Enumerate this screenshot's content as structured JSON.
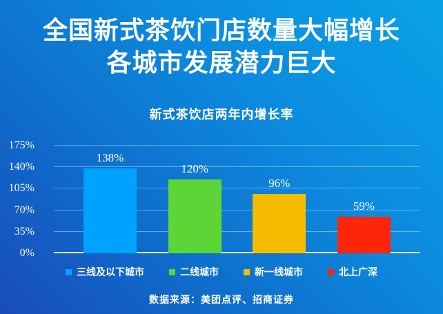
{
  "title": {
    "line1": "全国新式茶饮门店数量大幅增长",
    "line2": "各城市发展潜力巨大"
  },
  "chart_data": {
    "type": "bar",
    "title": "新式茶饮店两年内增长率",
    "categories": [
      "三线及以下城市",
      "二线城市",
      "新一线城市",
      "北上广深"
    ],
    "values": [
      138,
      120,
      96,
      59
    ],
    "value_labels": [
      "138%",
      "120%",
      "96%",
      "59%"
    ],
    "bar_colors": [
      "#00A2FF",
      "#5DD537",
      "#F5BC00",
      "#FF2508"
    ],
    "ylim": [
      0,
      175
    ],
    "yticks": [
      0,
      35,
      70,
      105,
      140,
      175
    ],
    "ytick_labels": [
      "0%",
      "35%",
      "70%",
      "105%",
      "140%",
      "175%"
    ],
    "grid": true,
    "legend_position": "bottom",
    "xlabel": "",
    "ylabel": ""
  },
  "footer": {
    "source": "数据来源：美团点评、招商证券"
  },
  "colors": {
    "bg_gradient_start": "#09A2E8",
    "bg_gradient_end": "#1A4BBA",
    "text": "#FFFFFF",
    "gridline": "rgba(255,255,255,0.38)",
    "axis_line": "#FFFFFF"
  }
}
